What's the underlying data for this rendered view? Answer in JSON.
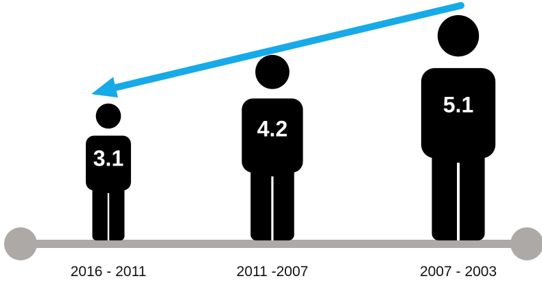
{
  "chart_data": {
    "type": "pictogram",
    "categories": [
      "2016 - 2011",
      "2011 -2007",
      "2007 - 2003"
    ],
    "values": [
      3.1,
      4.2,
      5.1
    ],
    "value_labels": [
      "3.1",
      "4.2",
      "5.1"
    ],
    "title": "",
    "xlabel": "",
    "ylabel": "",
    "ylim": [
      0,
      5.1
    ],
    "grid": false,
    "legend": "none",
    "arrow_direction": "right-to-left",
    "colors": {
      "figure": "#000000",
      "figure_text": "#ffffff",
      "axis": "#ada9a7",
      "arrow": "#16aae8",
      "category_text": "#111111"
    }
  }
}
